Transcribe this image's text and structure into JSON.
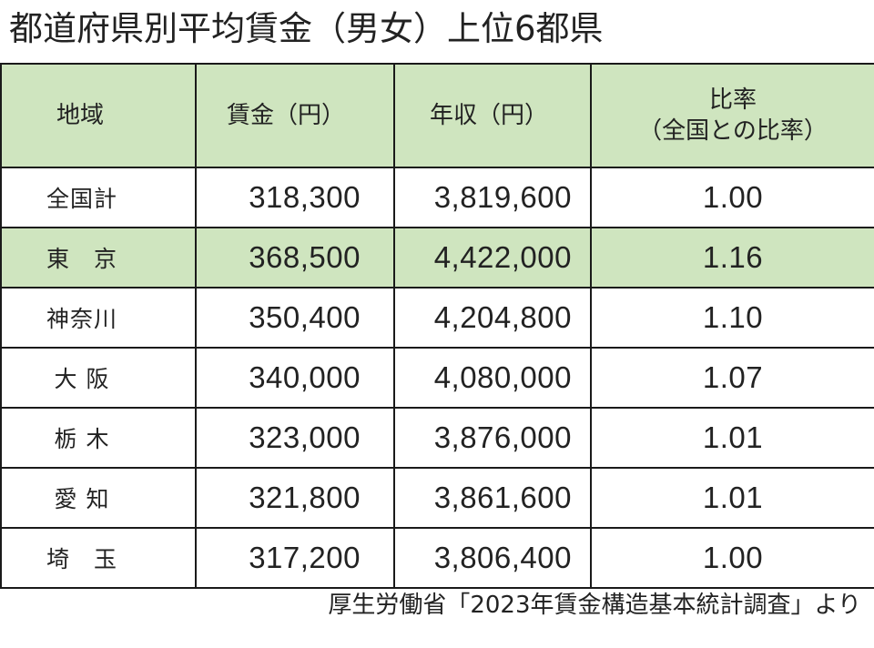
{
  "title": "都道府県別平均賃金（男女）上位6都県",
  "table": {
    "headers": {
      "region": "地域",
      "wage": "賃金（円）",
      "income": "年収（円）",
      "ratio_line1": "比率",
      "ratio_line2": "（全国との比率）"
    },
    "highlight_color": "#cfe5bf",
    "rows": [
      {
        "region": "全国計",
        "wage": "318,300",
        "income": "3,819,600",
        "ratio": "1.00",
        "highlighted": false
      },
      {
        "region": "東　京",
        "wage": "368,500",
        "income": "4,422,000",
        "ratio": "1.16",
        "highlighted": true
      },
      {
        "region": "神奈川",
        "wage": "350,400",
        "income": "4,204,800",
        "ratio": "1.10",
        "highlighted": false
      },
      {
        "region": "大 阪",
        "wage": "340,000",
        "income": "4,080,000",
        "ratio": "1.07",
        "highlighted": false
      },
      {
        "region": "栃 木",
        "wage": "323,000",
        "income": "3,876,000",
        "ratio": "1.01",
        "highlighted": false
      },
      {
        "region": "愛 知",
        "wage": "321,800",
        "income": "3,861,600",
        "ratio": "1.01",
        "highlighted": false
      },
      {
        "region": "埼　玉",
        "wage": "317,200",
        "income": "3,806,400",
        "ratio": "1.00",
        "highlighted": false
      }
    ]
  },
  "source": "厚生労働省「2023年賃金構造基本統計調査」より"
}
